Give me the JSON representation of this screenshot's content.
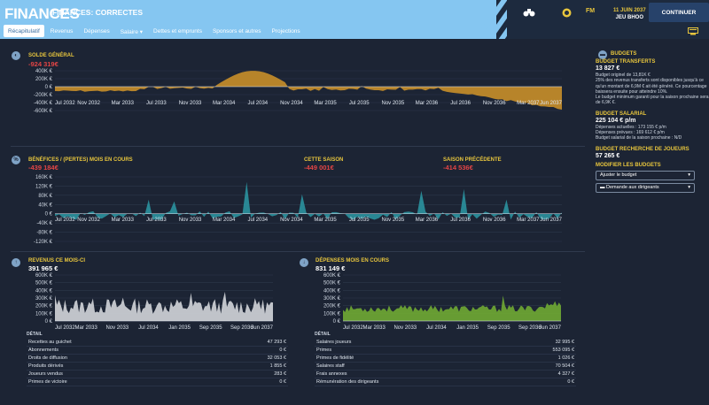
{
  "header": {
    "title": "FINANCES",
    "subtitle": "FINANCES: CORRECTES",
    "tabs": [
      "Récapitulatif",
      "Revenus",
      "Dépenses",
      "Salaire",
      "Dettes et emprunts",
      "Sponsors et autres",
      "Projections"
    ],
    "tab_active": "Récapitulatif",
    "fm_label": "FM",
    "date_line1": "11 JUIN 2037",
    "date_line2": "JEU BHOO",
    "continue_label": "CONTINUER"
  },
  "solde": {
    "title": "SOLDE GÉNÉRAL",
    "value": "-924 319€",
    "y_ticks": [
      "400K €",
      "200K €",
      "0 €",
      "-200K €",
      "-400K €",
      "-600K €"
    ],
    "x_ticks": [
      "Jul 2032",
      "Nov 2032",
      "Mar 2033",
      "Jul 2033",
      "Nov 2033",
      "Mar 2034",
      "Jul 2034",
      "Nov 2034",
      "Mar 2035",
      "Jul 2035",
      "Nov 2035",
      "Mar 2036",
      "Jul 2036",
      "Nov 2036",
      "Mar 2037",
      "Jun 2037"
    ]
  },
  "benefices": {
    "title": "BÉNÉFICES / (PERTES) MOIS EN COURS",
    "value": "-439 184€",
    "season_title": "CETTE SAISON",
    "season_value": "-449 001€",
    "prev_title": "SAISON PRÉCÉDENTE",
    "prev_value": "-414 536€",
    "y_ticks": [
      "160K €",
      "120K €",
      "80K €",
      "40K €",
      "0 €",
      "-40K €",
      "-80K €",
      "-120K €"
    ],
    "x_ticks": [
      "Jul 2032",
      "Nov 2032",
      "Mar 2033",
      "Jul 2033",
      "Nov 2033",
      "Mar 2034",
      "Jul 2034",
      "Nov 2034",
      "Mar 2035",
      "Jul 2035",
      "Nov 2035",
      "Mar 2036",
      "Jul 2036",
      "Nov 2036",
      "Mar 2037",
      "Jun 2037"
    ]
  },
  "revenus": {
    "title": "REVENUS CE MOIS-CI",
    "value": "391 965 €",
    "y_ticks": [
      "600K €",
      "500K €",
      "400K €",
      "300K €",
      "200K €",
      "100K €",
      "0 €"
    ],
    "x_ticks": [
      "Jul 2032",
      "Mar 2033",
      "Nov 2033",
      "Jul 2034",
      "Jan 2035",
      "Sep 2035",
      "Sep 2036",
      "Jun 2037"
    ],
    "detail_label": "DÉTAIL",
    "detail": [
      {
        "label": "Recettes au guichet",
        "value": "47 293 €"
      },
      {
        "label": "Abonnements",
        "value": "0 €"
      },
      {
        "label": "Droits de diffusion",
        "value": "32 053 €"
      },
      {
        "label": "Produits dérivés",
        "value": "1 855 €"
      },
      {
        "label": "Joueurs vendus",
        "value": "283 €"
      },
      {
        "label": "Primes de victoire",
        "value": "0 €"
      }
    ]
  },
  "depenses": {
    "title": "DÉPENSES MOIS EN COURS",
    "value": "831 149 €",
    "y_ticks": [
      "600K €",
      "500K €",
      "400K €",
      "300K €",
      "200K €",
      "100K €",
      "0 €"
    ],
    "x_ticks": [
      "Jul 2032",
      "Mar 2033",
      "Nov 2033",
      "Jul 2034",
      "Jan 2035",
      "Sep 2035",
      "Sep 2036",
      "Jun 2037"
    ],
    "detail_label": "DÉTAIL",
    "detail": [
      {
        "label": "Salaires joueurs",
        "value": "32 995 €"
      },
      {
        "label": "Primes",
        "value": "553 095 €"
      },
      {
        "label": "Primes de fidélité",
        "value": "1 026 €"
      },
      {
        "label": "Salaires staff",
        "value": "70 504 €"
      },
      {
        "label": "Frais annexes",
        "value": "4 327 €"
      },
      {
        "label": "Rémunération des dirigeants",
        "value": "0 €"
      }
    ]
  },
  "budgets": {
    "title": "BUDGETS",
    "transfer_title": "BUDGET TRANSFERTS",
    "transfer_value": "13 827 €",
    "transfer_p1": "Budget originel de 13,81K €",
    "transfer_p2": "25% des revenus transferts sont disponibles jusqu'à ce qu'un montant de 6,9M € ait été généré. Ce pourcentage baissera ensuite pour atteindre 10%.",
    "transfer_p3": "Le budget minimum garanti pour la saison prochaine sera de 6,9K €.",
    "salary_title": "BUDGET SALARIAL",
    "salary_value": "225 104 € p/m",
    "salary_p1": "Dépenses actuelles : 173 155 € p/m",
    "salary_p2": "Dépenses prévues : 169 612 € p/m",
    "salary_p3": "Budget salarial de la saison prochaine : N/D",
    "scout_title": "BUDGET RECHERCHE DE JOUEURS",
    "scout_value": "57 265 €",
    "modify_title": "MODIFIER LES BUDGETS",
    "adjust_label": "Ajuster le budget",
    "request_label": "Demande aux dirigeants"
  },
  "colors": {
    "solde": "#c08a2a",
    "benefices": "#2a8d9a",
    "revenus": "#c9ccd2",
    "depenses": "#6ca334"
  }
}
